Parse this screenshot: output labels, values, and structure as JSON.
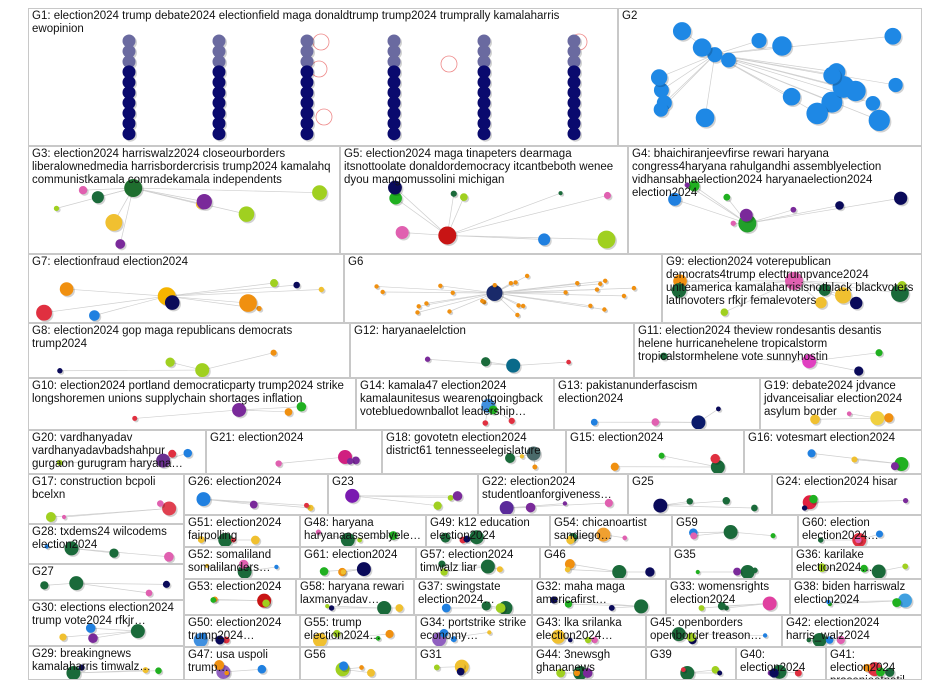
{
  "diagram": {
    "groups": [
      {
        "id": "G1",
        "label": "G1: election2024 trump debate2024 electionfield maga donaldtrump trump2024 trumprally kamalaharris ewopinion",
        "color": "#0a0a6e",
        "style": "columns"
      },
      {
        "id": "G2",
        "label": "G2",
        "color": "#1e88e5",
        "style": "cloud"
      },
      {
        "id": "G3",
        "label": "G3: election2024 harriswalz2024 closeourborders liberalownedmedia harrisbordercrisis trump2024 kamalahq communistkamala comradekamala independents",
        "color": "#1e6e2e",
        "style": "cluster"
      },
      {
        "id": "G5",
        "label": "G5: election2024 maga tinapeters dearmaga itsnottoolate donaldordemocracy itcantbeboth wenee dyou mangomussolini michigan",
        "color": "#c81414",
        "style": "cluster"
      },
      {
        "id": "G4",
        "label": "G4: bhaichiranjeevfirse rewari haryana congress4haryana rahulgandhi assemblyelection vidhansabhaelection2024 haryanaelection2024 election2024",
        "color": "#22a02a",
        "style": "cluster"
      },
      {
        "id": "G7",
        "label": "G7: electionfraud election2024",
        "color": "#f5b400",
        "style": "cluster"
      },
      {
        "id": "G6",
        "label": "G6",
        "color": "#f09010",
        "style": "hub"
      },
      {
        "id": "G9",
        "label": "G9: election2024 voterepublican democrats4trump electtrumpvance2024 uniteamerica kamalaharrisisnotblack blackvoters latinovoters rfkjr femalevoters",
        "color": "#e060b0",
        "style": "cluster"
      },
      {
        "id": "G8",
        "label": "G8: election2024 gop maga republicans democrats trump2024",
        "color": "#a0d020",
        "style": "cluster"
      },
      {
        "id": "G12",
        "label": "G12: haryanaelelction",
        "color": "#0a6a8a",
        "style": "cluster"
      },
      {
        "id": "G11",
        "label": "G11: election2024 theview rondesantis desantis helene hurricanehelene tropicalstorm tropicalstormhelene vote sunnyhostin",
        "color": "#e040c0",
        "style": "cluster"
      },
      {
        "id": "G10",
        "label": "G10: election2024 portland democraticparty trump2024 strike longshoremen unions supplychain shortages inflation",
        "color": "#7a2a9a",
        "style": "cluster"
      },
      {
        "id": "G14",
        "label": "G14: kamala47 election2024 kamalaunitesus wearenotgoingback votebluedownballot leadership…",
        "color": "#4090e0",
        "style": "cluster"
      },
      {
        "id": "G13",
        "label": "G13: pakistanunderfascism election2024",
        "color": "#0a1a6a",
        "style": "cluster"
      },
      {
        "id": "G19",
        "label": "G19: debate2024 jdvance jdvanceisaliar election2024 asylum border",
        "color": "#f0d040",
        "style": "cluster"
      },
      {
        "id": "G20",
        "label": "G20: vardhanyadav vardhanyadavbadshahpur gurgaon gurugram haryana…",
        "color": "#6a3090",
        "style": "cluster"
      },
      {
        "id": "G21",
        "label": "G21: election2024",
        "color": "#d02080",
        "style": "cluster"
      },
      {
        "id": "G18",
        "label": "G18: govotetn election2024 district61 tennesseelegislature",
        "color": "#4a6a6a",
        "style": "cluster"
      },
      {
        "id": "G15",
        "label": "G15: election2024",
        "color": "#1a6a3a",
        "style": "cluster"
      },
      {
        "id": "G16",
        "label": "G16: votesmart election2024",
        "color": "#20b020",
        "style": "cluster"
      },
      {
        "id": "G17",
        "label": "G17: construction bcpoli bcelxn",
        "color": "#e04050",
        "style": "cluster"
      },
      {
        "id": "G26",
        "label": "G26: election2024",
        "color": "#2080e0",
        "style": "cluster"
      },
      {
        "id": "G23",
        "label": "G23",
        "color": "#7a1ab0",
        "style": "cluster"
      },
      {
        "id": "G22",
        "label": "G22: election2024 studentloanforgiveness…",
        "color": "#5a2a9a",
        "style": "cluster"
      },
      {
        "id": "G25",
        "label": "G25",
        "color": "#0a0a5a",
        "style": "cluster"
      },
      {
        "id": "G24",
        "label": "G24: election2024 hisar",
        "color": "#e02040",
        "style": "cluster"
      },
      {
        "id": "G28",
        "label": "G28: txdems24 wilcodems election2024",
        "color": "#1a6a3a",
        "style": "cluster"
      },
      {
        "id": "G27",
        "label": "G27",
        "color": "#1a6a3a",
        "style": "cluster"
      },
      {
        "id": "G51",
        "label": "G51: election2024 fairpolling",
        "color": "#1a6a3a",
        "style": "cluster"
      },
      {
        "id": "G48",
        "label": "G48: haryana haryanaassemblyele…",
        "color": "#1a6a3a",
        "style": "cluster"
      },
      {
        "id": "G49",
        "label": "G49: k12 education election2024",
        "color": "#1a6a3a",
        "style": "cluster"
      },
      {
        "id": "G54",
        "label": "G54: chicanoartist sandiego…",
        "color": "#f0a030",
        "style": "cluster"
      },
      {
        "id": "G59",
        "label": "G59",
        "color": "#1a6a3a",
        "style": "cluster"
      },
      {
        "id": "G60",
        "label": "G60: election election2024…",
        "color": "#e03040",
        "style": "cluster"
      },
      {
        "id": "G52",
        "label": "G52: somaliland somalilanders…",
        "color": "#1a6a3a",
        "style": "cluster"
      },
      {
        "id": "G61",
        "label": "G61: election2024",
        "color": "#0a0a5a",
        "style": "cluster"
      },
      {
        "id": "G57",
        "label": "G57: election2024 timwalz liar",
        "color": "#1a6a3a",
        "style": "cluster"
      },
      {
        "id": "G46",
        "label": "G46",
        "color": "#1a6a3a",
        "style": "cluster"
      },
      {
        "id": "G35",
        "label": "G35",
        "color": "#1a6a3a",
        "style": "cluster"
      },
      {
        "id": "G36",
        "label": "G36: karilake election2024…",
        "color": "#1a6a3a",
        "style": "cluster"
      },
      {
        "id": "G30",
        "label": "G30: elections election2024 trump vote2024 rfkjr…",
        "color": "#1a6a3a",
        "style": "cluster"
      },
      {
        "id": "G53",
        "label": "G53: election2024",
        "color": "#c81414",
        "style": "cluster"
      },
      {
        "id": "G58",
        "label": "G58: haryana rewari laxmanyadav…",
        "color": "#1a6a3a",
        "style": "cluster"
      },
      {
        "id": "G37",
        "label": "G37: swingstate election2024…",
        "color": "#1a6a3a",
        "style": "cluster"
      },
      {
        "id": "G32",
        "label": "G32: maha maga americafirst…",
        "color": "#1a6a3a",
        "style": "cluster"
      },
      {
        "id": "G33",
        "label": "G33: womensrights election2024",
        "color": "#e040a0",
        "style": "cluster"
      },
      {
        "id": "G38",
        "label": "G38: biden harriswalz election2024",
        "color": "#40a0e0",
        "style": "cluster"
      },
      {
        "id": "G50",
        "label": "G50: election2024 trump2024…",
        "color": "#4090e0",
        "style": "cluster"
      },
      {
        "id": "G55",
        "label": "G55: trump election2024…",
        "color": "#f0c030",
        "style": "cluster"
      },
      {
        "id": "G34",
        "label": "G34: portstrike strike economy…",
        "color": "#9060c0",
        "style": "cluster"
      },
      {
        "id": "G43",
        "label": "G43: lka srilanka election2024…",
        "color": "#f0c030",
        "style": "cluster"
      },
      {
        "id": "G45",
        "label": "G45: openborders openborder treason…",
        "color": "#1a6a3a",
        "style": "cluster"
      },
      {
        "id": "G42",
        "label": "G42: election2024 harris_walz2024",
        "color": "#1a6a3a",
        "style": "cluster"
      },
      {
        "id": "G29",
        "label": "G29: breakingnews kamalaharris timwalz…",
        "color": "#1a6a3a",
        "style": "cluster"
      },
      {
        "id": "G47",
        "label": "G47: usa uspoli trump…",
        "color": "#9060c0",
        "style": "cluster"
      },
      {
        "id": "G56",
        "label": "G56",
        "color": "#a0d020",
        "style": "cluster"
      },
      {
        "id": "G31",
        "label": "G31",
        "color": "#f0c030",
        "style": "cluster"
      },
      {
        "id": "G44",
        "label": "G44: 3newsgh ghananews",
        "color": "#1a6a3a",
        "style": "cluster"
      },
      {
        "id": "G39",
        "label": "G39",
        "color": "#1a6a3a",
        "style": "cluster"
      },
      {
        "id": "G40",
        "label": "G40: election2024",
        "color": "#1a6a3a",
        "style": "cluster"
      },
      {
        "id": "G41",
        "label": "G41: election2024 prasenjeetpatil…",
        "color": "#e03040",
        "style": "cluster"
      }
    ]
  }
}
